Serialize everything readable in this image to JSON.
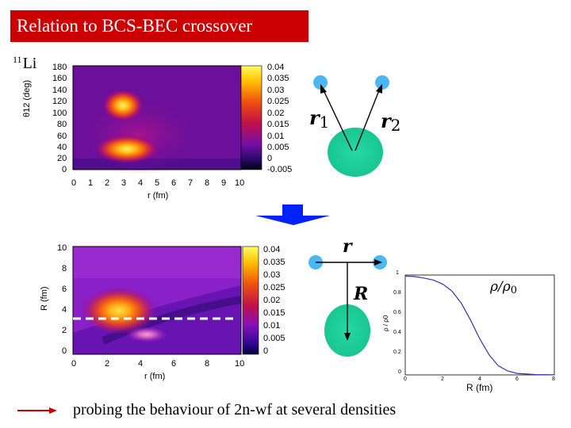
{
  "title": "Relation to BCS-BEC crossover",
  "nucleus_label": {
    "mass": "11",
    "symbol": "Li"
  },
  "top_plot": {
    "y_title": "θ12 (deg)",
    "x_title": "r (fm)",
    "y_ticks": [
      "180",
      "160",
      "140",
      "120",
      "100",
      "80",
      "60",
      "40",
      "20",
      "0"
    ],
    "x_ticks": [
      "0",
      "1",
      "2",
      "3",
      "4",
      "5",
      "6",
      "7",
      "8",
      "9",
      "10"
    ],
    "colorbar_ticks": [
      "0.04",
      "0.035",
      "0.03",
      "0.025",
      "0.02",
      "0.015",
      "0.01",
      "0.005",
      "0",
      "-0.005"
    ]
  },
  "bottom_plot": {
    "y_title": "R (fm)",
    "x_title": "r (fm)",
    "y_ticks": [
      "10",
      "8",
      "6",
      "4",
      "2",
      "0"
    ],
    "x_ticks": [
      "0",
      "2",
      "4",
      "6",
      "8",
      "10"
    ],
    "colorbar_ticks": [
      "0.04",
      "0.035",
      "0.03",
      "0.025",
      "0.02",
      "0.015",
      "0.01",
      "0.005",
      "0"
    ]
  },
  "diagram_top": {
    "label_r1": "r",
    "sub_r1": "1",
    "label_r2": "r",
    "sub_r2": "2"
  },
  "diagram_bottom": {
    "label_r": "r",
    "label_R": "R"
  },
  "density_plot": {
    "legend": "ρ/ρ",
    "legend_sub": "0",
    "y_title": "ρ / ρ0",
    "x_title": "R   (fm)",
    "y_ticks": [
      "1",
      "0.8",
      "0.6",
      "0.4",
      "0.2",
      "0"
    ],
    "x_ticks": [
      "0",
      "2",
      "4",
      "6",
      "8"
    ]
  },
  "chart_data": {
    "type": "line",
    "title": "",
    "xlabel": "R (fm)",
    "ylabel": "ρ / ρ0",
    "xlim": [
      0,
      8
    ],
    "ylim": [
      0,
      1
    ],
    "series": [
      {
        "x": [
          0,
          0.5,
          1,
          1.5,
          2,
          2.5,
          3,
          3.5,
          4,
          4.5,
          5,
          5.5,
          6,
          7,
          8
        ],
        "values": [
          0.99,
          0.985,
          0.97,
          0.95,
          0.91,
          0.84,
          0.72,
          0.55,
          0.36,
          0.2,
          0.09,
          0.04,
          0.015,
          0.003,
          0.001
        ]
      }
    ]
  },
  "footer": "probing the behaviour of 2n-wf at several densities",
  "colors": {
    "title_bg": "#cc0000",
    "particle": "#4db8f0",
    "core": "#1fcf9a",
    "arrow": "#0022ff",
    "curve": "#3333aa"
  }
}
